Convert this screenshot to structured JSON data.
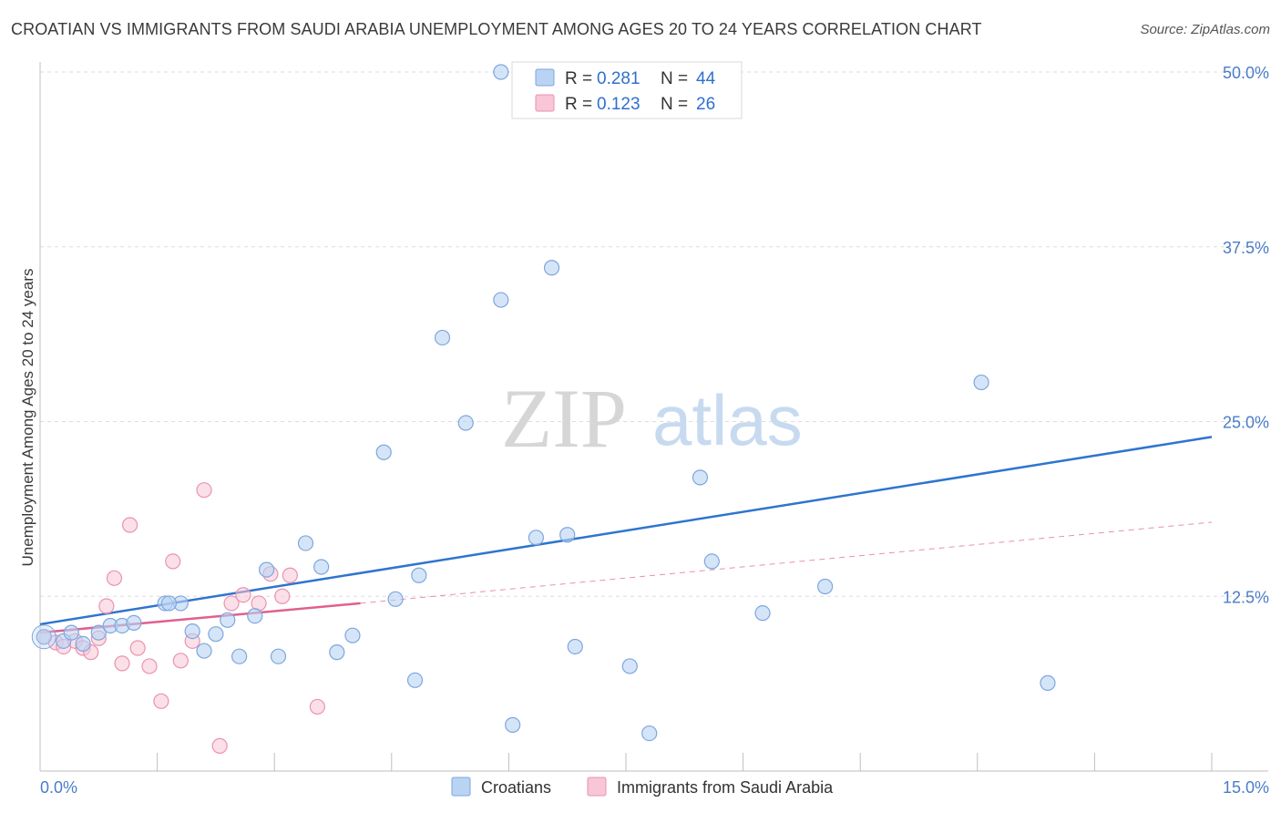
{
  "header": {
    "title": "CROATIAN VS IMMIGRANTS FROM SAUDI ARABIA UNEMPLOYMENT AMONG AGES 20 TO 24 YEARS CORRELATION CHART",
    "source": "Source: ZipAtlas.com"
  },
  "watermark": {
    "zip": "ZIP",
    "atlas": "atlas"
  },
  "legend": {
    "rows": [
      {
        "r_label": "R =",
        "r_value": "0.281",
        "n_label": "N =",
        "n_value": "44"
      },
      {
        "r_label": "R =",
        "r_value": "0.123",
        "n_label": "N =",
        "n_value": "26"
      }
    ]
  },
  "bottom_legend": {
    "croatians": "Croatians",
    "saudi": "Immigrants from Saudi Arabia"
  },
  "colors": {
    "blue_fill": "#b9d3f3",
    "blue_stroke": "#7ea6dd",
    "blue_line": "#2f74cf",
    "pink_fill": "#f8c6d6",
    "pink_stroke": "#ea92b0",
    "pink_line": "#e0608d",
    "tick_text": "#4a7cc9"
  },
  "chart_data": {
    "type": "scatter",
    "title": "CROATIAN VS IMMIGRANTS FROM SAUDI ARABIA UNEMPLOYMENT AMONG AGES 20 TO 24 YEARS CORRELATION CHART",
    "xlabel": "",
    "ylabel": "Unemployment Among Ages 20 to 24 years",
    "xlim": [
      0,
      15
    ],
    "ylim": [
      0,
      50
    ],
    "x_tick_labels": [
      "0.0%",
      "15.0%"
    ],
    "y_ticks": [
      12.5,
      25.0,
      37.5,
      50.0
    ],
    "y_tick_labels": [
      "12.5%",
      "25.0%",
      "37.5%",
      "50.0%"
    ],
    "series": [
      {
        "name": "Croatians",
        "R": 0.281,
        "N": 44,
        "trend": {
          "x": [
            0,
            15
          ],
          "y": [
            10.5,
            23.9
          ],
          "style": "solid"
        },
        "points": [
          [
            0.05,
            9.6
          ],
          [
            0.3,
            9.3
          ],
          [
            0.4,
            9.9
          ],
          [
            0.55,
            9.1
          ],
          [
            0.75,
            9.9
          ],
          [
            0.9,
            10.4
          ],
          [
            1.05,
            10.4
          ],
          [
            1.2,
            10.6
          ],
          [
            1.6,
            12.0
          ],
          [
            1.8,
            12.0
          ],
          [
            1.95,
            10.0
          ],
          [
            2.1,
            8.6
          ],
          [
            2.25,
            9.8
          ],
          [
            2.4,
            10.8
          ],
          [
            2.55,
            8.2
          ],
          [
            2.75,
            11.1
          ],
          [
            2.9,
            14.4
          ],
          [
            3.05,
            8.2
          ],
          [
            3.4,
            16.3
          ],
          [
            3.6,
            14.6
          ],
          [
            3.8,
            8.5
          ],
          [
            4.0,
            9.7
          ],
          [
            4.4,
            22.8
          ],
          [
            4.55,
            12.3
          ],
          [
            4.8,
            6.5
          ],
          [
            4.85,
            14.0
          ],
          [
            5.15,
            31.0
          ],
          [
            5.45,
            24.9
          ],
          [
            5.9,
            33.7
          ],
          [
            6.05,
            3.3
          ],
          [
            6.35,
            16.7
          ],
          [
            6.55,
            36.0
          ],
          [
            6.75,
            16.9
          ],
          [
            6.85,
            8.9
          ],
          [
            7.55,
            7.5
          ],
          [
            7.8,
            2.7
          ],
          [
            8.45,
            21.0
          ],
          [
            8.6,
            15.0
          ],
          [
            9.25,
            11.3
          ],
          [
            10.05,
            13.2
          ],
          [
            12.05,
            27.8
          ],
          [
            12.9,
            6.3
          ],
          [
            5.9,
            50.0
          ],
          [
            1.65,
            12.0
          ]
        ]
      },
      {
        "name": "Immigrants from Saudi Arabia",
        "R": 0.123,
        "N": 26,
        "trend": {
          "x": [
            0,
            4.1
          ],
          "y": [
            9.9,
            12.0
          ],
          "style": "solid"
        },
        "trend_extended": {
          "x": [
            4.1,
            15
          ],
          "y": [
            12.0,
            17.8
          ],
          "style": "dashed"
        },
        "points": [
          [
            0.05,
            9.6
          ],
          [
            0.2,
            9.2
          ],
          [
            0.3,
            8.9
          ],
          [
            0.45,
            9.3
          ],
          [
            0.55,
            8.8
          ],
          [
            0.65,
            8.5
          ],
          [
            0.75,
            9.5
          ],
          [
            0.85,
            11.8
          ],
          [
            0.95,
            13.8
          ],
          [
            1.05,
            7.7
          ],
          [
            1.15,
            17.6
          ],
          [
            1.25,
            8.8
          ],
          [
            1.4,
            7.5
          ],
          [
            1.55,
            5.0
          ],
          [
            1.7,
            15.0
          ],
          [
            1.8,
            7.9
          ],
          [
            1.95,
            9.3
          ],
          [
            2.1,
            20.1
          ],
          [
            2.3,
            1.8
          ],
          [
            2.45,
            12.0
          ],
          [
            2.6,
            12.6
          ],
          [
            2.8,
            12.0
          ],
          [
            2.95,
            14.1
          ],
          [
            3.1,
            12.5
          ],
          [
            3.2,
            14.0
          ],
          [
            3.55,
            4.6
          ]
        ]
      }
    ]
  }
}
